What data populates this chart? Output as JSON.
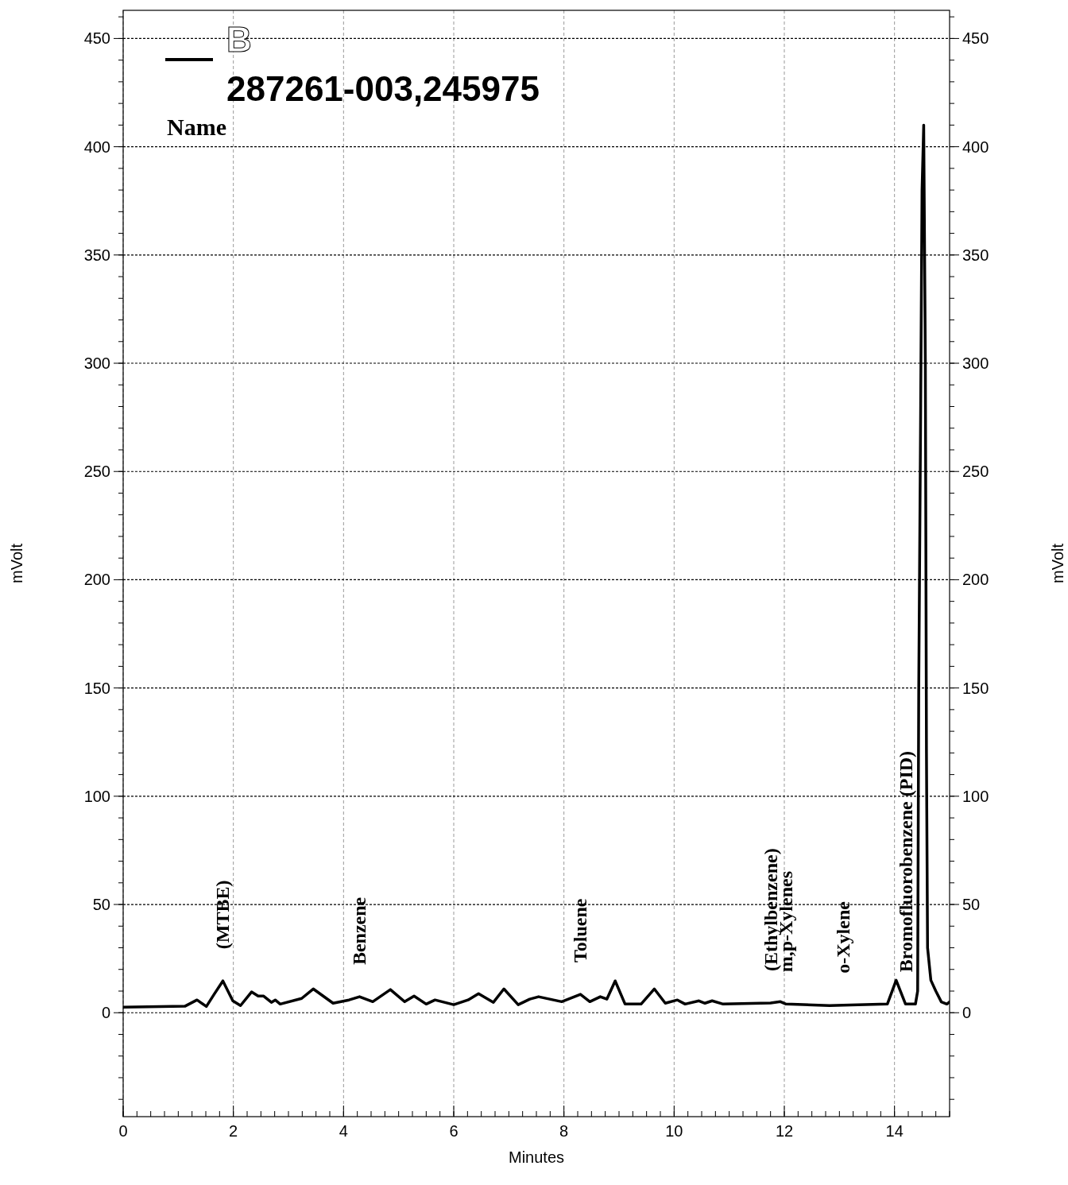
{
  "chart_data": {
    "type": "line",
    "xlabel": "Minutes",
    "ylabel": "mVolt",
    "y2label": "mVolt",
    "xlim": [
      0,
      15
    ],
    "xticks": [
      0,
      2,
      4,
      6,
      8,
      10,
      12,
      14
    ],
    "ylim": [
      -48,
      463
    ],
    "yticks": [
      0,
      50,
      100,
      150,
      200,
      250,
      300,
      350,
      400,
      450
    ],
    "y2lim": [
      -48,
      463
    ],
    "y2ticks": [
      0,
      50,
      100,
      150,
      200,
      250,
      300,
      350,
      400,
      450
    ],
    "grid": true,
    "legend": "top left",
    "legend_title": "Name",
    "line_style": "solid",
    "marker": "none",
    "series": [
      {
        "name": "B",
        "color": "#000000",
        "x": [
          0,
          1.12,
          1.34,
          1.51,
          1.65,
          1.81,
          1.99,
          2.13,
          2.33,
          2.45,
          2.55,
          2.69,
          2.76,
          2.85,
          3.24,
          3.45,
          3.81,
          4.1,
          4.29,
          4.53,
          4.85,
          5.11,
          5.28,
          5.5,
          5.66,
          6.0,
          6.26,
          6.45,
          6.72,
          6.91,
          7.17,
          7.38,
          7.54,
          7.96,
          8.3,
          8.47,
          8.66,
          8.78,
          8.93,
          9.11,
          9.4,
          9.64,
          9.84,
          10.06,
          10.2,
          10.45,
          10.56,
          10.69,
          10.89,
          11.75,
          11.93,
          12.03,
          12.82,
          13.07,
          13.87,
          14.03,
          14.2,
          14.34,
          14.38,
          14.42,
          14.44,
          14.47,
          14.5,
          14.53,
          14.56,
          14.58,
          14.6,
          14.66,
          14.75,
          14.85,
          14.95,
          15
        ],
        "values": [
          2.6,
          3.0,
          5.9,
          2.9,
          8.5,
          14.7,
          5.5,
          3.3,
          9.6,
          7.7,
          7.7,
          4.8,
          5.9,
          4.0,
          6.6,
          11,
          4.4,
          5.9,
          7.4,
          5.1,
          10.7,
          5.1,
          7.7,
          4.0,
          5.9,
          3.7,
          5.9,
          8.8,
          4.8,
          11,
          3.7,
          6.3,
          7.4,
          5.1,
          8.5,
          5.1,
          7.4,
          6.3,
          14.7,
          4.0,
          4.0,
          11,
          4.4,
          5.9,
          4.0,
          5.5,
          4.4,
          5.5,
          4.0,
          4.5,
          5.1,
          4.0,
          3.3,
          3.5,
          4.0,
          15,
          4.0,
          4.0,
          4.0,
          10,
          150,
          260,
          380,
          410,
          300,
          120,
          30,
          15,
          10,
          5,
          4,
          5
        ]
      }
    ],
    "annotations": [
      "287261-003,245975",
      {
        "text": "(MTBE)",
        "x": 1.81,
        "y": 14.7
      },
      {
        "text": "Benzene",
        "x": 4.29,
        "y": 7.4
      },
      {
        "text": "Toluene",
        "x": 8.3,
        "y": 8.5
      },
      {
        "text": "(Ethylbenzene)",
        "x": 11.75,
        "y": 4.5
      },
      {
        "text": "m,p-Xylenes",
        "x": 12.03,
        "y": 4.0
      },
      {
        "text": "o-Xylene",
        "x": 13.07,
        "y": 3.5
      },
      {
        "text": "Bromofluorobenzene (PID)",
        "x": 14.2,
        "y": 4.0
      }
    ]
  }
}
